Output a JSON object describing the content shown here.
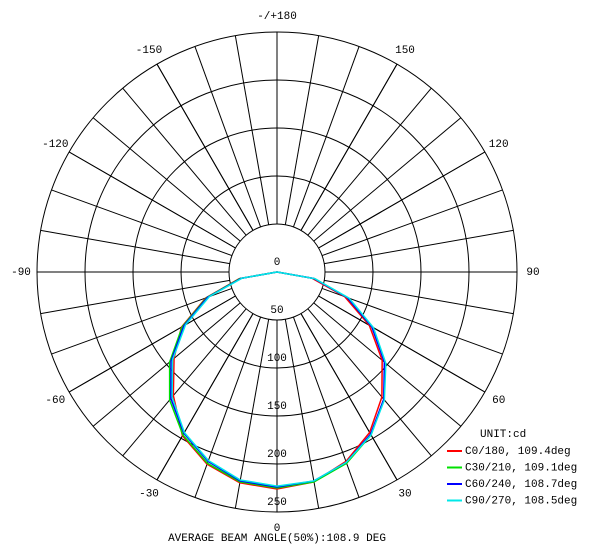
{
  "chart_data": {
    "type": "polar",
    "unit_label": "UNIT:cd",
    "footer": "AVERAGE BEAM ANGLE(50%):108.9 DEG",
    "rlim": [
      0,
      250
    ],
    "rticks": [
      0,
      50,
      100,
      150,
      200,
      250
    ],
    "angle_ticks": [
      0,
      30,
      60,
      90,
      120,
      150,
      {
        "value": 180,
        "label": "-/+180"
      },
      -150,
      -120,
      -90,
      -60,
      -30
    ],
    "theta": [
      -90,
      -80,
      -70,
      -60,
      -50,
      -40,
      -30,
      -20,
      -10,
      0,
      10,
      20,
      30,
      40,
      50,
      60,
      70,
      80,
      90
    ],
    "series": [
      {
        "name": "C0/180, 109.4deg",
        "color": "#ff0000",
        "values": [
          0,
          40,
          79,
          115,
          140,
          168,
          197,
          213,
          223,
          226,
          222,
          210,
          193,
          170,
          143,
          111,
          75,
          37,
          0
        ]
      },
      {
        "name": "C30/210, 109.1deg",
        "color": "#00e000",
        "values": [
          0,
          39,
          78,
          114,
          146,
          174,
          196,
          212,
          222,
          225,
          222,
          212,
          196,
          173,
          147,
          114,
          78,
          40,
          0
        ]
      },
      {
        "name": "C60/240, 108.7deg",
        "color": "#0000ff",
        "values": [
          0,
          38,
          77,
          112,
          144,
          172,
          194,
          210,
          221,
          224,
          221,
          211,
          195,
          173,
          146,
          114,
          78,
          39,
          0
        ]
      },
      {
        "name": "C90/270, 108.5deg",
        "color": "#00e8e8",
        "values": [
          0,
          37,
          75,
          110,
          142,
          170,
          193,
          209,
          220,
          223,
          221,
          211,
          196,
          174,
          148,
          116,
          80,
          40,
          0
        ]
      }
    ]
  }
}
